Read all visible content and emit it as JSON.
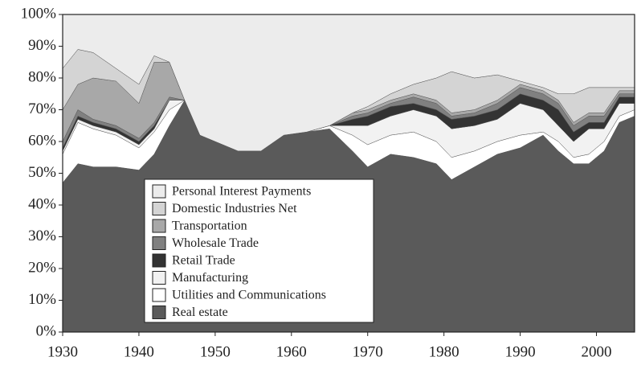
{
  "chart_data": {
    "type": "stacked_area",
    "x": [
      1930,
      1932,
      1934,
      1937,
      1940,
      1942,
      1944,
      1946,
      1948,
      1950,
      1953,
      1956,
      1959,
      1962,
      1965,
      1968,
      1970,
      1973,
      1976,
      1979,
      1981,
      1984,
      1987,
      1990,
      1993,
      1995,
      1997,
      1999,
      2001,
      2003,
      2005
    ],
    "series": [
      {
        "name": "Real estate",
        "color": "#5a5a5a",
        "values": [
          47,
          53,
          52,
          52,
          51,
          56,
          65,
          73,
          62,
          60,
          57,
          57,
          62,
          63,
          64,
          57,
          52,
          56,
          55,
          53,
          48,
          52,
          56,
          58,
          62,
          57,
          53,
          53,
          57,
          66,
          68
        ]
      },
      {
        "name": "Utilities and Communications",
        "color": "#ffffff",
        "values": [
          9,
          13,
          12,
          10,
          7,
          7,
          5,
          0,
          0,
          0,
          0,
          0,
          0,
          0,
          1,
          5,
          7,
          6,
          8,
          7,
          7,
          5,
          4,
          4,
          1,
          3,
          2,
          3,
          3,
          2,
          2
        ]
      },
      {
        "name": "Manufacturing",
        "color": "#f2f2f2",
        "values": [
          1,
          1,
          1,
          1,
          1,
          1,
          3,
          0,
          0,
          0,
          0,
          0,
          0,
          0,
          0,
          3,
          6,
          6,
          7,
          8,
          9,
          8,
          7,
          10,
          7,
          5,
          5,
          8,
          4,
          4,
          2
        ]
      },
      {
        "name": "Retail Trade",
        "color": "#333333",
        "values": [
          1,
          1,
          1,
          1,
          1,
          1,
          0,
          0,
          0,
          0,
          0,
          0,
          0,
          0,
          0,
          2,
          3,
          3,
          2,
          2,
          3,
          3,
          3,
          3,
          3,
          5,
          3,
          2,
          2,
          2,
          2
        ]
      },
      {
        "name": "Wholesale Trade",
        "color": "#808080",
        "values": [
          2,
          2,
          1,
          1,
          1,
          1,
          1,
          0,
          0,
          0,
          0,
          0,
          0,
          0,
          0,
          1,
          1,
          1,
          2,
          2,
          1,
          1,
          2,
          2,
          2,
          2,
          2,
          2,
          2,
          1,
          1
        ]
      },
      {
        "name": "Transportation",
        "color": "#a8a8a8",
        "values": [
          10,
          8,
          13,
          14,
          11,
          19,
          11,
          0,
          0,
          0,
          0,
          0,
          0,
          0,
          0,
          1,
          1,
          1,
          1,
          1,
          1,
          1,
          1,
          1,
          1,
          1,
          1,
          1,
          1,
          1,
          1
        ]
      },
      {
        "name": "Domestic Industries Net",
        "color": "#d4d4d4",
        "values": [
          13,
          11,
          8,
          4,
          6,
          2,
          0,
          0,
          0,
          0,
          0,
          0,
          0,
          0,
          0,
          0,
          1,
          2,
          3,
          7,
          13,
          10,
          8,
          1,
          1,
          2,
          9,
          8,
          8,
          1,
          1
        ]
      },
      {
        "name": "Personal Interest Payments",
        "color": "#ececec",
        "values": [
          17,
          11,
          12,
          17,
          22,
          13,
          15,
          27,
          38,
          40,
          43,
          43,
          38,
          37,
          35,
          31,
          29,
          25,
          22,
          20,
          18,
          20,
          19,
          21,
          23,
          25,
          25,
          23,
          23,
          23,
          23
        ]
      }
    ],
    "xlim": [
      1930,
      2005
    ],
    "xticks": [
      1930,
      1940,
      1950,
      1960,
      1970,
      1980,
      1990,
      2000
    ],
    "ylim": [
      0,
      100
    ],
    "yticks": [
      {
        "value": 0,
        "label": "0%"
      },
      {
        "value": 10,
        "label": "10%"
      },
      {
        "value": 20,
        "label": "20%"
      },
      {
        "value": 30,
        "label": "30%"
      },
      {
        "value": 40,
        "label": "40%"
      },
      {
        "value": 50,
        "label": "50%"
      },
      {
        "value": 60,
        "label": "60%"
      },
      {
        "value": 70,
        "label": "70%"
      },
      {
        "value": 80,
        "label": "80%"
      },
      {
        "value": 90,
        "label": "90%"
      },
      {
        "value": 100,
        "label": "100%"
      }
    ]
  }
}
